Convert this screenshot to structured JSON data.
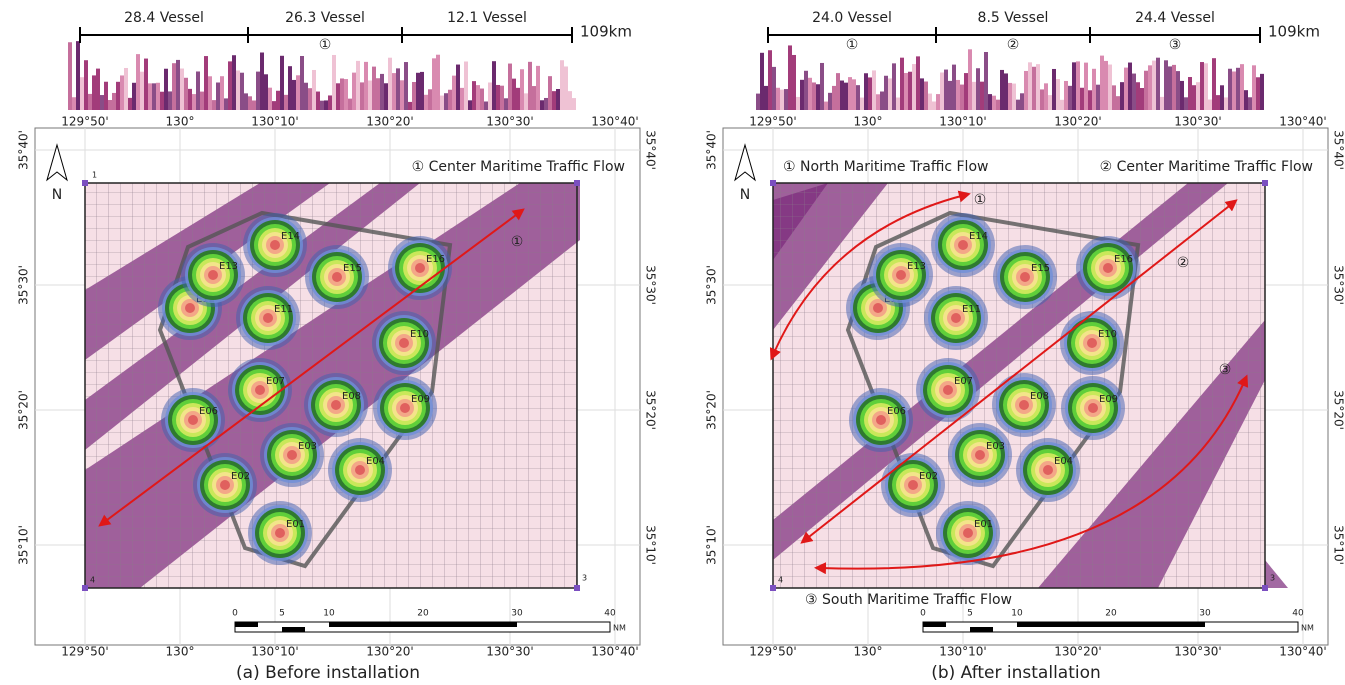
{
  "panels": [
    {
      "histogram": {
        "segments": [
          "28.4 Vessel",
          "26.3 Vessel",
          "12.1 Vessel"
        ],
        "total": "109km",
        "markers": [
          null,
          "①",
          null
        ]
      },
      "longitude_labels": [
        "129°50'",
        "130°",
        "130°10'",
        "130°20'",
        "130°30'",
        "130°40'"
      ],
      "latitude_labels": [
        "35°40'",
        "35°30'",
        "35°20'",
        "35°10'"
      ],
      "north": "N",
      "corners": [
        "1",
        "4",
        "3"
      ],
      "flows": [
        "① Center Maritime Traffic Flow"
      ],
      "flow_markers": [
        "①"
      ],
      "turbines": [
        "E01",
        "E02",
        "E03",
        "E04",
        "E06",
        "E07",
        "E08",
        "E09",
        "E10",
        "E11",
        "E12",
        "E13",
        "E14",
        "E15",
        "E16"
      ],
      "scale": {
        "ticks": [
          "0",
          "5",
          "10",
          "20",
          "30",
          "40"
        ],
        "unit": "NM"
      },
      "caption": "(a) Before installation"
    },
    {
      "histogram": {
        "segments": [
          "24.0 Vessel",
          "8.5 Vessel",
          "24.4 Vessel"
        ],
        "total": "109km",
        "markers": [
          "①",
          "②",
          "③"
        ]
      },
      "longitude_labels": [
        "129°50'",
        "130°",
        "130°10'",
        "130°20'",
        "130°30'",
        "130°40'"
      ],
      "latitude_labels": [
        "35°40'",
        "35°30'",
        "35°20'",
        "35°10'"
      ],
      "north": "N",
      "corners": [
        "4",
        "3"
      ],
      "flows": [
        "① North Maritime Traffic Flow",
        "② Center Maritime Traffic Flow",
        "③ South Maritime Traffic Flow"
      ],
      "flow_markers": [
        "①",
        "②",
        "③"
      ],
      "turbines": [
        "E01",
        "E02",
        "E03",
        "E04",
        "E06",
        "E07",
        "E08",
        "E09",
        "E10",
        "E11",
        "E12",
        "E13",
        "E14",
        "E15",
        "E16"
      ],
      "scale": {
        "ticks": [
          "0",
          "5",
          "10",
          "20",
          "30",
          "40"
        ],
        "unit": "NM"
      },
      "caption": "(b) After installation"
    }
  ]
}
